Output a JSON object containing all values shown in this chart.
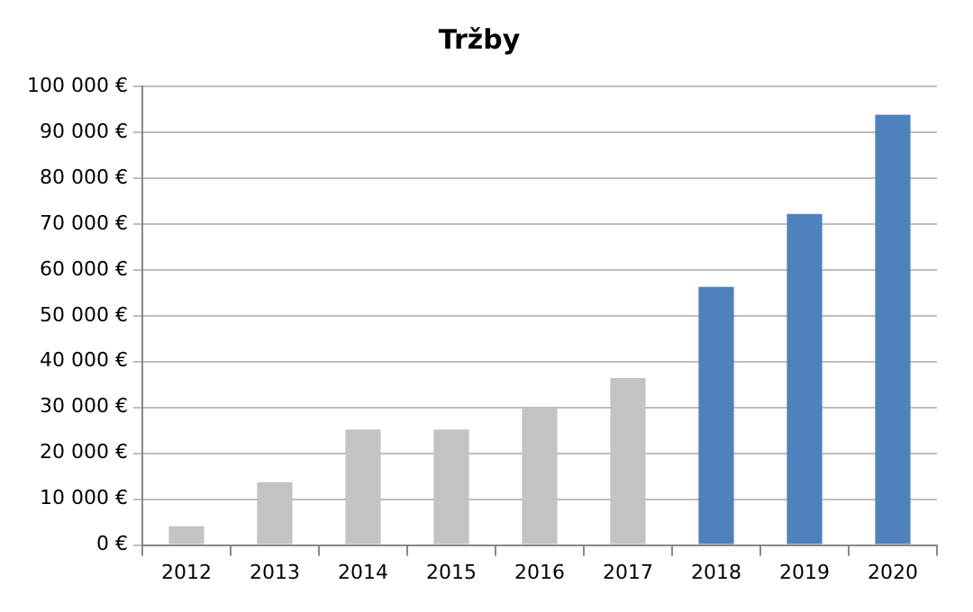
{
  "chart_data": {
    "type": "bar",
    "title": "Tržby",
    "categories": [
      "2012",
      "2013",
      "2014",
      "2015",
      "2016",
      "2017",
      "2018",
      "2019",
      "2020"
    ],
    "values": [
      4100,
      13700,
      25200,
      25200,
      29900,
      36400,
      56300,
      72200,
      93800
    ],
    "colors": [
      "#c3c3c3",
      "#c3c3c3",
      "#c3c3c3",
      "#c3c3c3",
      "#c3c3c3",
      "#c3c3c3",
      "#4f81bd",
      "#4f81bd",
      "#4f81bd"
    ],
    "ylim": [
      0,
      100000
    ],
    "yticks": [
      {
        "value": 0,
        "label": "0 €"
      },
      {
        "value": 10000,
        "label": "10 000 €"
      },
      {
        "value": 20000,
        "label": "20 000 €"
      },
      {
        "value": 30000,
        "label": "30 000 €"
      },
      {
        "value": 40000,
        "label": "40 000 €"
      },
      {
        "value": 50000,
        "label": "50 000 €"
      },
      {
        "value": 60000,
        "label": "60 000 €"
      },
      {
        "value": 70000,
        "label": "70 000 €"
      },
      {
        "value": 80000,
        "label": "80 000 €"
      },
      {
        "value": 90000,
        "label": "90 000 €"
      },
      {
        "value": 100000,
        "label": "100 000 €"
      }
    ],
    "grid": "y",
    "legend": false
  }
}
